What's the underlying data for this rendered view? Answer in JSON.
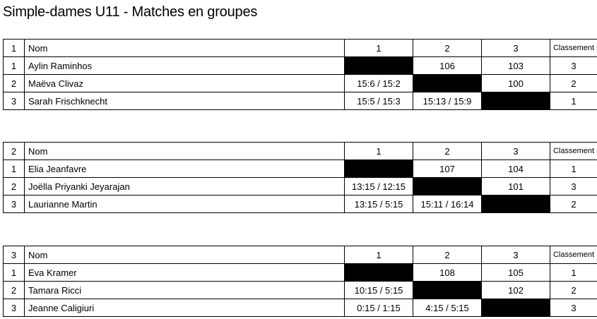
{
  "title": "Simple-dames U11 - Matches en groupes",
  "header": {
    "name": "Nom",
    "cols": [
      "1",
      "2",
      "3"
    ],
    "rank": "Classement"
  },
  "groups": [
    {
      "number": "1",
      "players": [
        {
          "pos": "1",
          "name": "Aylin Raminhos",
          "results": [
            "",
            "106",
            "103"
          ],
          "rank": "3"
        },
        {
          "pos": "2",
          "name": "Maëva Clivaz",
          "results": [
            "15:6 / 15:2",
            "",
            "100"
          ],
          "rank": "2"
        },
        {
          "pos": "3",
          "name": "Sarah Frischknecht",
          "results": [
            "15:5 / 15:3",
            "15:13 / 15:9",
            ""
          ],
          "rank": "1"
        }
      ]
    },
    {
      "number": "2",
      "players": [
        {
          "pos": "1",
          "name": "Elia Jeanfavre",
          "results": [
            "",
            "107",
            "104"
          ],
          "rank": "1"
        },
        {
          "pos": "2",
          "name": "Joëlla Priyanki Jeyarajan",
          "results": [
            "13:15 / 12:15",
            "",
            "101"
          ],
          "rank": "3"
        },
        {
          "pos": "3",
          "name": "Laurianne Martin",
          "results": [
            "13:15 / 5:15",
            "15:11 / 16:14",
            ""
          ],
          "rank": "2"
        }
      ]
    },
    {
      "number": "3",
      "players": [
        {
          "pos": "1",
          "name": "Eva Kramer",
          "results": [
            "",
            "108",
            "105"
          ],
          "rank": "1"
        },
        {
          "pos": "2",
          "name": "Tamara Ricci",
          "results": [
            "10:15 / 5:15",
            "",
            "102"
          ],
          "rank": "2"
        },
        {
          "pos": "3",
          "name": "Jeanne Caligiuri",
          "results": [
            "0:15 / 1:15",
            "4:15 / 5:15",
            ""
          ],
          "rank": "3"
        }
      ]
    }
  ]
}
